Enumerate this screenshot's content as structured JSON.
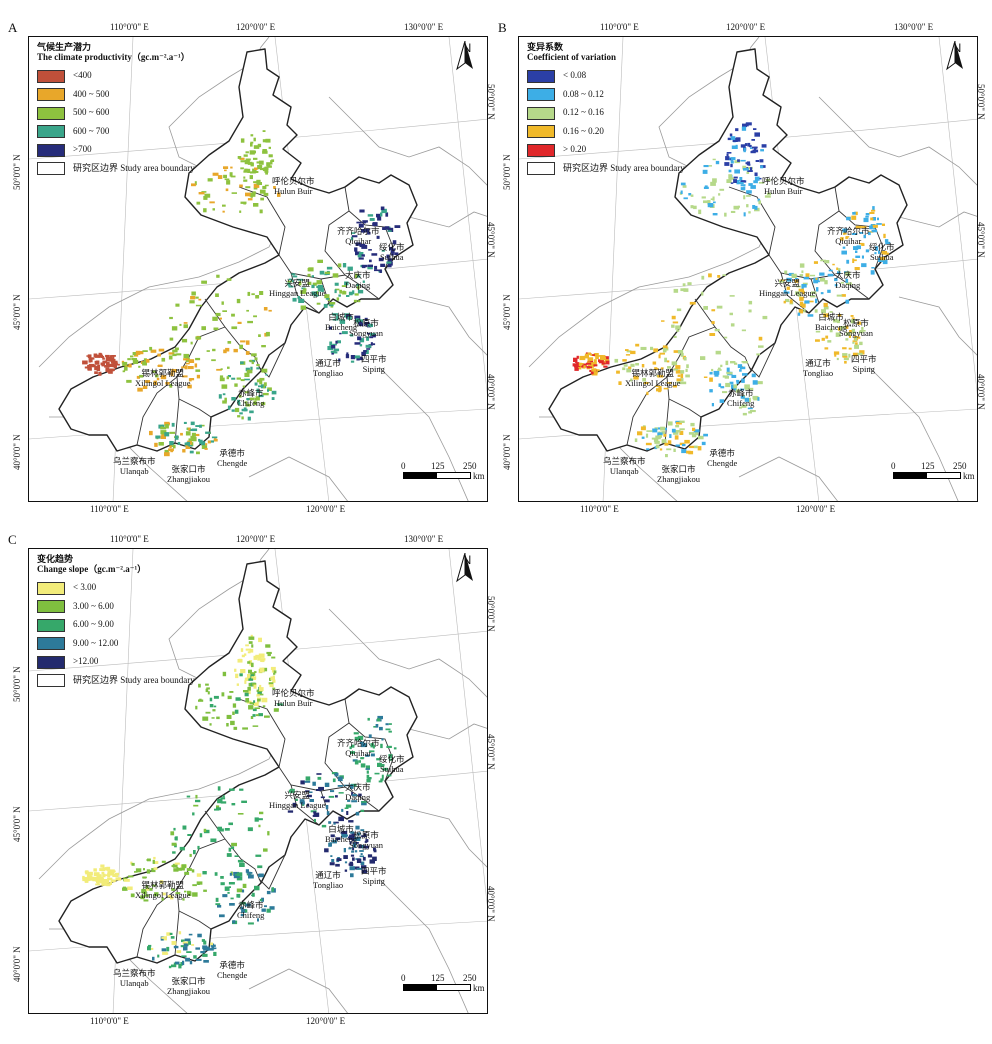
{
  "panels": [
    {
      "label": "A",
      "legend_title_cn": "气候生产潜力",
      "legend_title_en": "The climate productivity（gc.m⁻².a⁻¹）",
      "classes": [
        {
          "label": "<400",
          "color": "#c0503a"
        },
        {
          "label": "400 ~ 500",
          "color": "#e8a72a"
        },
        {
          "label": "500 ~ 600",
          "color": "#8ec23f"
        },
        {
          "label": "600 ~ 700",
          "color": "#3aa58a"
        },
        {
          "label": ">700",
          "color": "#262c7a"
        },
        {
          "label": "研究区边界 Study area boundary",
          "color": "#ffffff"
        }
      ]
    },
    {
      "label": "B",
      "legend_title_cn": "变异系数",
      "legend_title_en": "Coefficient of variation",
      "classes": [
        {
          "label": "< 0.08",
          "color": "#2b3fa6"
        },
        {
          "label": "0.08 ~ 0.12",
          "color": "#3daee6"
        },
        {
          "label": "0.12 ~ 0.16",
          "color": "#b6d98a"
        },
        {
          "label": "0.16 ~ 0.20",
          "color": "#f0b92a"
        },
        {
          "label": "> 0.20",
          "color": "#e0272a"
        },
        {
          "label": "研究区边界 Study area boundary",
          "color": "#ffffff"
        }
      ]
    },
    {
      "label": "C",
      "legend_title_cn": "变化趋势",
      "legend_title_en": "Change slope（gc.m⁻².a⁻¹）",
      "classes": [
        {
          "label": "< 3.00",
          "color": "#f2ec7a"
        },
        {
          "label": "3.00 ~ 6.00",
          "color": "#7fbf3f"
        },
        {
          "label": "6.00 ~ 9.00",
          "color": "#36a86a"
        },
        {
          "label": "9.00 ~ 12.00",
          "color": "#2d7a9a"
        },
        {
          "label": ">12.00",
          "color": "#232a6e"
        },
        {
          "label": "研究区边界 Study area boundary",
          "color": "#ffffff"
        }
      ]
    }
  ],
  "coords": {
    "lon110": "110°0'0\" E",
    "lon120": "120°0'0\" E",
    "lon130": "130°0'0\" E",
    "lat40": "40°0'0\" N",
    "lat45": "45°0'0\" N",
    "lat50": "50°0'0\" N"
  },
  "scale": {
    "n0": "0",
    "n1": "125",
    "n2": "250",
    "unit": "km"
  },
  "north": "N",
  "places": [
    {
      "cn": "呼伦贝尔市",
      "en": "Hulun Buir"
    },
    {
      "cn": "齐齐哈尔市",
      "en": "Qiqihar"
    },
    {
      "cn": "绥化市",
      "en": "Suihua"
    },
    {
      "cn": "大庆市",
      "en": "Daqing"
    },
    {
      "cn": "兴安盟",
      "en": "Hinggan League"
    },
    {
      "cn": "白城市",
      "en": "Baicheng"
    },
    {
      "cn": "松原市",
      "en": "Songyuan"
    },
    {
      "cn": "通辽市",
      "en": "Tongliao"
    },
    {
      "cn": "四平市",
      "en": "Siping"
    },
    {
      "cn": "锡林郭勒盟",
      "en": "Xilingol League"
    },
    {
      "cn": "赤峰市",
      "en": "Chifeng"
    },
    {
      "cn": "乌兰察布市",
      "en": "Ulanqab"
    },
    {
      "cn": "张家口市",
      "en": "Zhangjiakou"
    },
    {
      "cn": "承德市",
      "en": "Chengde"
    }
  ]
}
